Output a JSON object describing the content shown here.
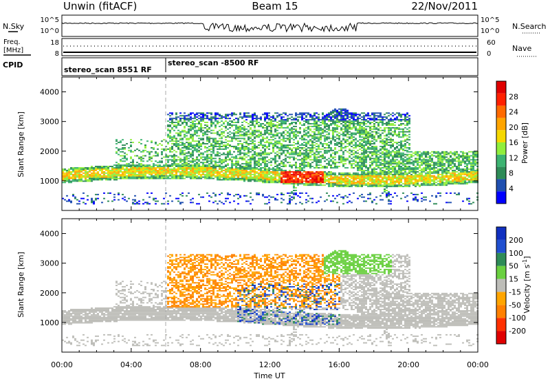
{
  "header": {
    "station": "Unwin (fitACF)",
    "beam": "Beam 15",
    "date": "22/Nov/2011"
  },
  "top_panels": {
    "nsky_label": "N.Sky",
    "nsearch_label": "N.Search",
    "freq_label_line1": "Freq.",
    "freq_label_line2": "[MHz]",
    "nave_label": "Nave",
    "cpid_label": "CPID",
    "left_ticks_noise": [
      "10^5",
      "10^0"
    ],
    "right_ticks_noise": [
      "10^5",
      "10^0"
    ],
    "left_ticks_freq": [
      "18",
      "8"
    ],
    "right_ticks_nave": [
      "60",
      "0"
    ],
    "cpid_segments": [
      {
        "label": "stereo_scan 8551 RF",
        "start_hour": 0,
        "end_hour": 6
      },
      {
        "label": "stereo_scan -8500 RF",
        "start_hour": 6,
        "end_hour": 24
      }
    ]
  },
  "colors": {
    "power_scale": [
      "#0000ff",
      "#1f4fb0",
      "#2e8b57",
      "#3cb371",
      "#90ee3c",
      "#f5d800",
      "#ffa500",
      "#ff6a00",
      "#ff2000",
      "#e00000"
    ],
    "velocity_scale": [
      "#1030c0",
      "#2050d0",
      "#2e8b57",
      "#6ad040",
      "#bdbdb8",
      "#ffa500",
      "#ff8000",
      "#ff3000",
      "#e00000"
    ],
    "dashed_line": "#aaaaaa"
  },
  "chart_data": [
    {
      "type": "heatmap",
      "name": "Power",
      "xlabel": "",
      "ylabel": "Slant Range [km]",
      "xlim": [
        0,
        24
      ],
      "ylim": [
        0,
        4500
      ],
      "yticks": [
        1000,
        2000,
        3000,
        4000
      ],
      "colorbar": {
        "label": "Power [dB]",
        "ticks": [
          4,
          8,
          12,
          16,
          20,
          24,
          28
        ]
      },
      "approximate_features": [
        {
          "desc": "persistent band",
          "start_hour": 0,
          "end_hour": 24,
          "range_km": [
            900,
            1400
          ]
        },
        {
          "desc": "upper band",
          "start_hour": 6,
          "end_hour": 20,
          "range_km": [
            2000,
            3300
          ]
        },
        {
          "desc": "strong echoes",
          "start_hour": 12.5,
          "end_hour": 15,
          "range_km": [
            900,
            1300
          ]
        }
      ]
    },
    {
      "type": "heatmap",
      "name": "Velocity",
      "xlabel": "Time UT",
      "ylabel": "Slant Range [km]",
      "xlim": [
        0,
        24
      ],
      "ylim": [
        0,
        4500
      ],
      "yticks": [
        1000,
        2000,
        3000,
        4000
      ],
      "colorbar": {
        "label": "Velocity [m s^-1]",
        "ticks": [
          200,
          100,
          50,
          15,
          -15,
          -50,
          -100,
          -200
        ]
      },
      "approximate_features": [
        {
          "desc": "ground scatter grey band",
          "start_hour": 0,
          "end_hour": 24,
          "range_km": [
            900,
            1400
          ]
        },
        {
          "desc": "negative velocities",
          "start_hour": 6,
          "end_hour": 16,
          "range_km": [
            1500,
            3300
          ]
        },
        {
          "desc": "positive velocities",
          "start_hour": 10,
          "end_hour": 16,
          "range_km": [
            800,
            2300
          ]
        }
      ]
    }
  ],
  "time_axis": {
    "ticks": [
      "00:00",
      "04:00",
      "08:00",
      "12:00",
      "16:00",
      "20:00",
      "00:00"
    ],
    "label": "Time UT"
  }
}
